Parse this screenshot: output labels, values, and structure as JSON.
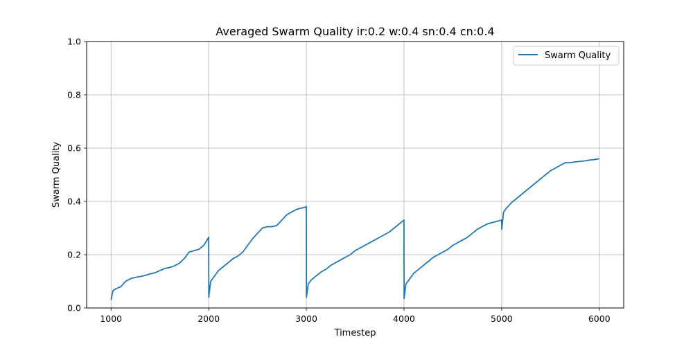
{
  "chart_data": {
    "type": "line",
    "title": "Averaged Swarm Quality ir:0.2 w:0.4 sn:0.4 cn:0.4",
    "xlabel": "Timestep",
    "ylabel": "Swarm Quality",
    "xlim": [
      750,
      6250
    ],
    "ylim": [
      0.0,
      1.0
    ],
    "xticks": [
      1000,
      2000,
      3000,
      4000,
      5000,
      6000
    ],
    "yticks": [
      0.0,
      0.2,
      0.4,
      0.6,
      0.8,
      1.0
    ],
    "xtick_labels": [
      "1000",
      "2000",
      "3000",
      "4000",
      "5000",
      "6000"
    ],
    "ytick_labels": [
      "0.0",
      "0.2",
      "0.4",
      "0.6",
      "0.8",
      "1.0"
    ],
    "grid": true,
    "legend_position": "top-right",
    "series": [
      {
        "name": "Swarm Quality",
        "color": "#1f77b4",
        "x": [
          1000,
          1020,
          1050,
          1100,
          1150,
          1200,
          1250,
          1300,
          1350,
          1400,
          1450,
          1500,
          1550,
          1600,
          1650,
          1700,
          1750,
          1800,
          1850,
          1900,
          1950,
          2000,
          2001,
          2020,
          2050,
          2100,
          2150,
          2200,
          2250,
          2300,
          2350,
          2400,
          2450,
          2500,
          2550,
          2600,
          2650,
          2700,
          2750,
          2800,
          2850,
          2900,
          2950,
          3000,
          3001,
          3020,
          3050,
          3100,
          3150,
          3200,
          3250,
          3300,
          3350,
          3400,
          3450,
          3500,
          3550,
          3600,
          3650,
          3700,
          3750,
          3800,
          3850,
          3900,
          3950,
          4000,
          4001,
          4020,
          4050,
          4100,
          4150,
          4200,
          4250,
          4300,
          4350,
          4400,
          4450,
          4500,
          4550,
          4600,
          4650,
          4700,
          4750,
          4800,
          4850,
          4900,
          4950,
          5000,
          5001,
          5020,
          5050,
          5100,
          5150,
          5200,
          5250,
          5300,
          5350,
          5400,
          5450,
          5500,
          5550,
          5600,
          5650,
          5700,
          5750,
          5800,
          5850,
          5900,
          5950,
          6000
        ],
        "y": [
          0.03,
          0.065,
          0.072,
          0.08,
          0.1,
          0.11,
          0.115,
          0.118,
          0.122,
          0.128,
          0.132,
          0.14,
          0.148,
          0.152,
          0.158,
          0.168,
          0.185,
          0.21,
          0.215,
          0.22,
          0.235,
          0.265,
          0.04,
          0.1,
          0.115,
          0.14,
          0.155,
          0.17,
          0.185,
          0.195,
          0.21,
          0.235,
          0.26,
          0.28,
          0.3,
          0.305,
          0.305,
          0.31,
          0.33,
          0.35,
          0.36,
          0.37,
          0.375,
          0.38,
          0.04,
          0.09,
          0.105,
          0.12,
          0.135,
          0.145,
          0.16,
          0.17,
          0.18,
          0.19,
          0.2,
          0.215,
          0.225,
          0.235,
          0.245,
          0.255,
          0.265,
          0.275,
          0.285,
          0.3,
          0.315,
          0.33,
          0.035,
          0.09,
          0.105,
          0.13,
          0.145,
          0.16,
          0.175,
          0.19,
          0.2,
          0.21,
          0.22,
          0.235,
          0.245,
          0.255,
          0.265,
          0.28,
          0.295,
          0.305,
          0.315,
          0.32,
          0.325,
          0.33,
          0.295,
          0.36,
          0.375,
          0.395,
          0.41,
          0.425,
          0.44,
          0.455,
          0.47,
          0.485,
          0.5,
          0.515,
          0.525,
          0.535,
          0.545,
          0.545,
          0.548,
          0.55,
          0.552,
          0.555,
          0.557,
          0.56
        ]
      }
    ]
  }
}
